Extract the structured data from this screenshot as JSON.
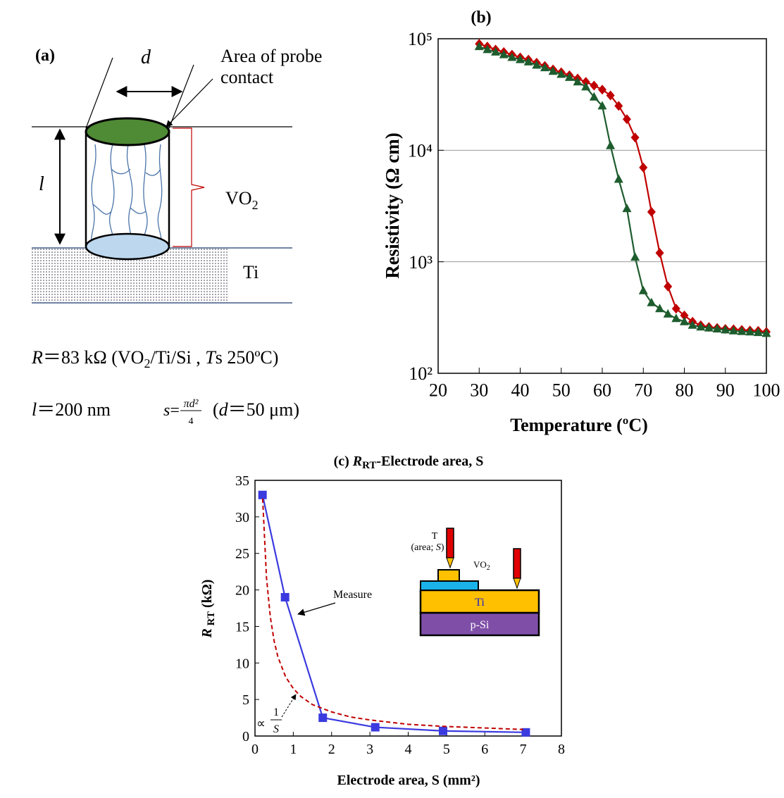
{
  "panel_a": {
    "label": "(a)",
    "d": "d",
    "probe": [
      "Area of probe",
      "contact"
    ],
    "l": "l",
    "vo2": [
      "VO",
      "2"
    ],
    "ti": "Ti",
    "eq1": [
      "R",
      "＝83 kΩ (VO",
      "2",
      "/Ti/Si , ",
      "T",
      "s 250ºC)"
    ],
    "eq2": [
      "l",
      "＝200 nm",
      "s",
      "=",
      "πd²",
      "4",
      "(",
      "d",
      "＝50 μm)"
    ]
  },
  "chart_data": [
    {
      "type": "line",
      "title": "(b)",
      "xlabel": "Temperature (ºC)",
      "ylabel": "Resistivity (Ω cm)",
      "log_y": true,
      "grid": true,
      "xlim": [
        20,
        100
      ],
      "xticks": [
        20,
        30,
        40,
        50,
        60,
        70,
        80,
        90,
        100
      ],
      "ylim": [
        100,
        100000
      ],
      "yticks": [
        {
          "value": 100,
          "label": "10²"
        },
        {
          "value": 1000,
          "label": "10³"
        },
        {
          "value": 10000,
          "label": "10⁴"
        },
        {
          "value": 100000,
          "label": "10⁵"
        }
      ],
      "x": [
        30,
        32,
        34,
        36,
        38,
        40,
        42,
        44,
        46,
        48,
        50,
        52,
        54,
        56,
        58,
        60,
        62,
        64,
        66,
        68,
        70,
        72,
        74,
        76,
        78,
        80,
        82,
        84,
        86,
        88,
        90,
        92,
        94,
        96,
        98,
        100
      ],
      "series": [
        {
          "color": "#c00000",
          "marker": "diamond",
          "values": [
            90000,
            85000,
            80000,
            76000,
            72000,
            68000,
            65000,
            61000,
            57000,
            53000,
            50000,
            47000,
            44000,
            41000,
            38000,
            35000,
            31000,
            25000,
            19000,
            13000,
            7000,
            2800,
            1200,
            600,
            380,
            330,
            290,
            270,
            260,
            255,
            250,
            248,
            245,
            242,
            240,
            235
          ]
        },
        {
          "color": "#1e5c2e",
          "marker": "triangle",
          "values": [
            85000,
            80000,
            76000,
            72000,
            68000,
            65000,
            62000,
            58000,
            55000,
            51000,
            48000,
            45000,
            41000,
            37000,
            30000,
            25000,
            11000,
            5500,
            3000,
            1100,
            550,
            430,
            380,
            340,
            310,
            290,
            270,
            260,
            255,
            250,
            245,
            240,
            237,
            235,
            232,
            228
          ]
        }
      ]
    },
    {
      "type": "line",
      "title": [
        "(c) ",
        "R",
        "RT",
        "-Electrode area, S"
      ],
      "xlabel": "Electrode area, S (mm²)",
      "ylabel": [
        "R",
        " RT",
        " (kΩ)"
      ],
      "log_y": false,
      "grid": false,
      "xlim": [
        0,
        8
      ],
      "xticks": [
        0,
        1,
        2,
        3,
        4,
        5,
        6,
        7,
        8
      ],
      "ylim": [
        0,
        35
      ],
      "yticks": [
        0,
        5,
        10,
        15,
        20,
        25,
        30,
        35
      ],
      "series": [
        {
          "color": "#3a3adf",
          "marker": "square",
          "x": [
            0.196,
            0.785,
            1.77,
            3.14,
            4.91,
            7.07
          ],
          "values": [
            33,
            19,
            2.5,
            1.2,
            0.7,
            0.5
          ]
        },
        {
          "color": "#c00000",
          "dash": true,
          "x": [
            0.2,
            0.3,
            0.4,
            0.5,
            0.6,
            0.8,
            1,
            1.2,
            1.5,
            2,
            2.5,
            3,
            4,
            5,
            6,
            7
          ],
          "values": [
            32.5,
            21.7,
            16.3,
            13,
            10.8,
            8.1,
            6.5,
            5.4,
            4.3,
            3.3,
            2.6,
            2.2,
            1.6,
            1.3,
            1.1,
            0.9
          ]
        }
      ],
      "annotations": {
        "measure": "Measure",
        "proportional": "∝",
        "numerator": "1",
        "denominator": "S",
        "inset": {
          "t": "T",
          "area": [
            "(area; ",
            "S",
            ")"
          ],
          "vo2": [
            "VO",
            "2"
          ],
          "ti": "Ti",
          "psi": "p-Si"
        }
      }
    }
  ]
}
